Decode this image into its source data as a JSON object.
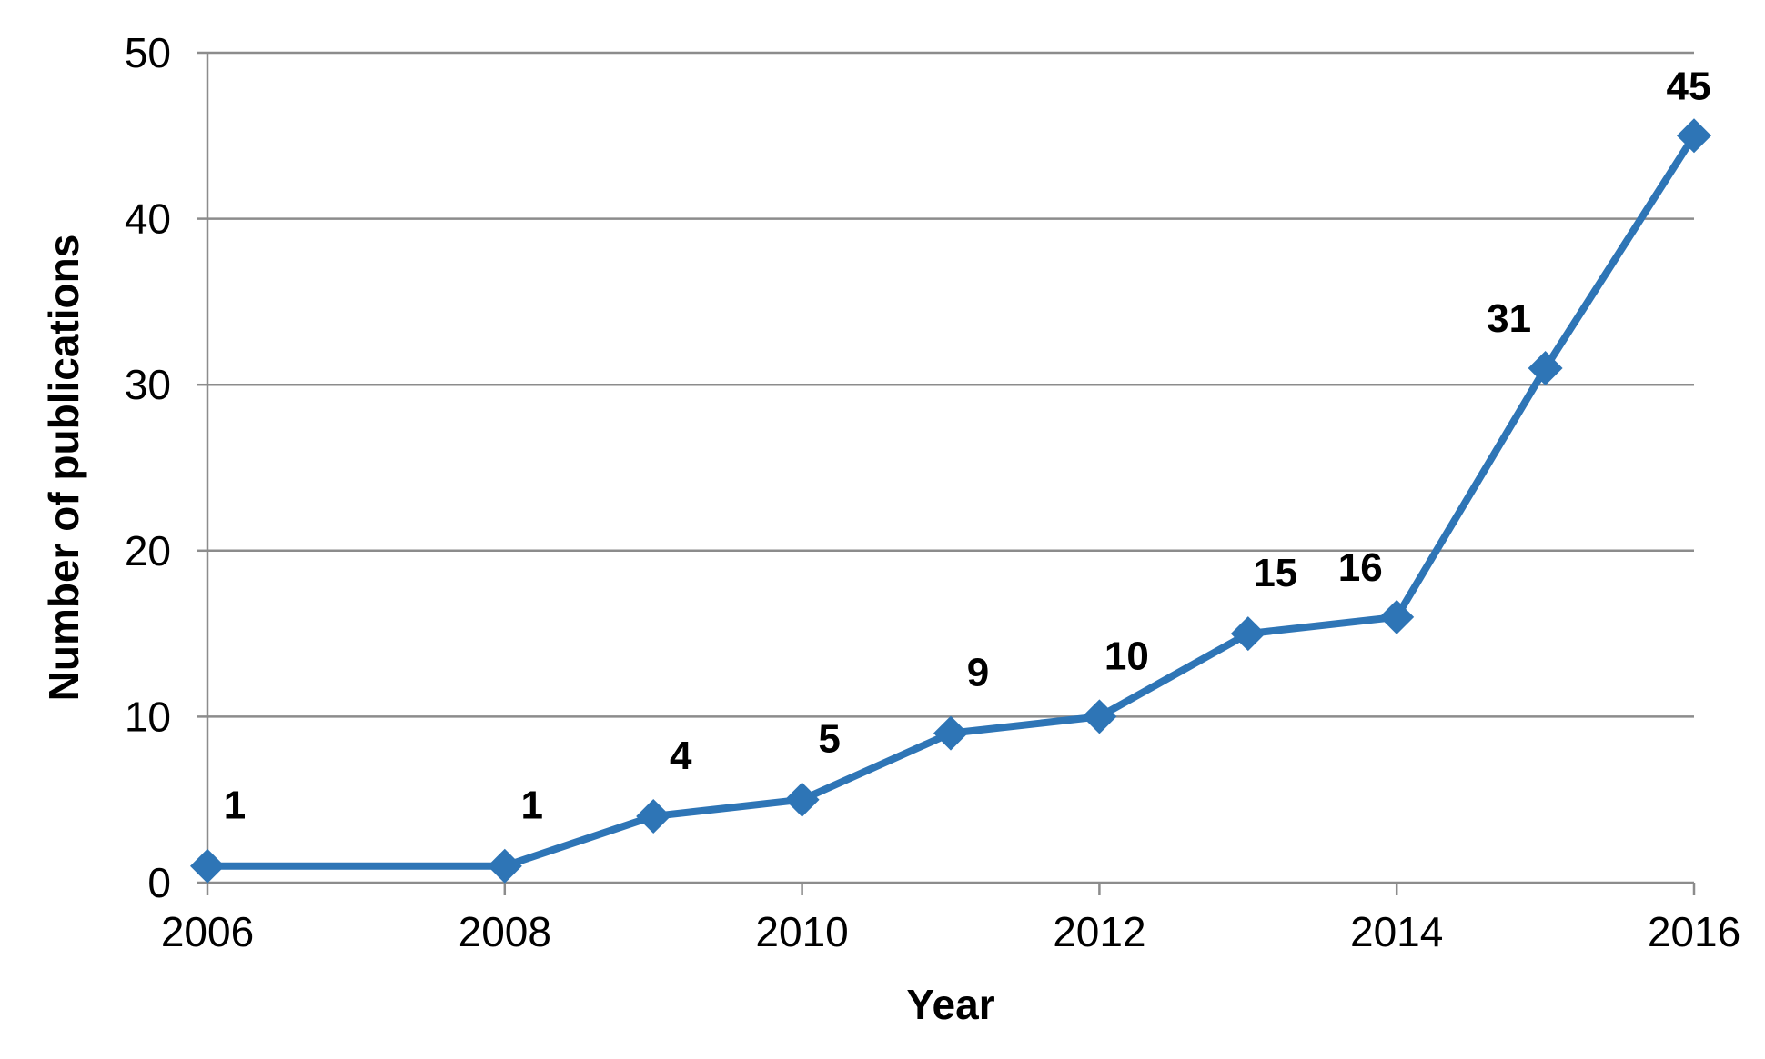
{
  "chart_data": {
    "type": "line",
    "xlabel": "Year",
    "ylabel": "Number of publications",
    "xlim": [
      2006,
      2016
    ],
    "ylim": [
      0,
      50
    ],
    "x_ticks": [
      2006,
      2008,
      2010,
      2012,
      2014,
      2016
    ],
    "y_ticks": [
      0,
      10,
      20,
      30,
      40,
      50
    ],
    "grid": "horizontal",
    "legend": "none",
    "series": [
      {
        "color": "#2e75b6",
        "marker": "diamond",
        "points": [
          {
            "x": 2006,
            "y": 1
          },
          {
            "x": 2008,
            "y": 1
          },
          {
            "x": 2009,
            "y": 4
          },
          {
            "x": 2010,
            "y": 5
          },
          {
            "x": 2011,
            "y": 9
          },
          {
            "x": 2012,
            "y": 10
          },
          {
            "x": 2013,
            "y": 15
          },
          {
            "x": 2014,
            "y": 16
          },
          {
            "x": 2015,
            "y": 31
          },
          {
            "x": 2016,
            "y": 45
          }
        ]
      }
    ]
  }
}
